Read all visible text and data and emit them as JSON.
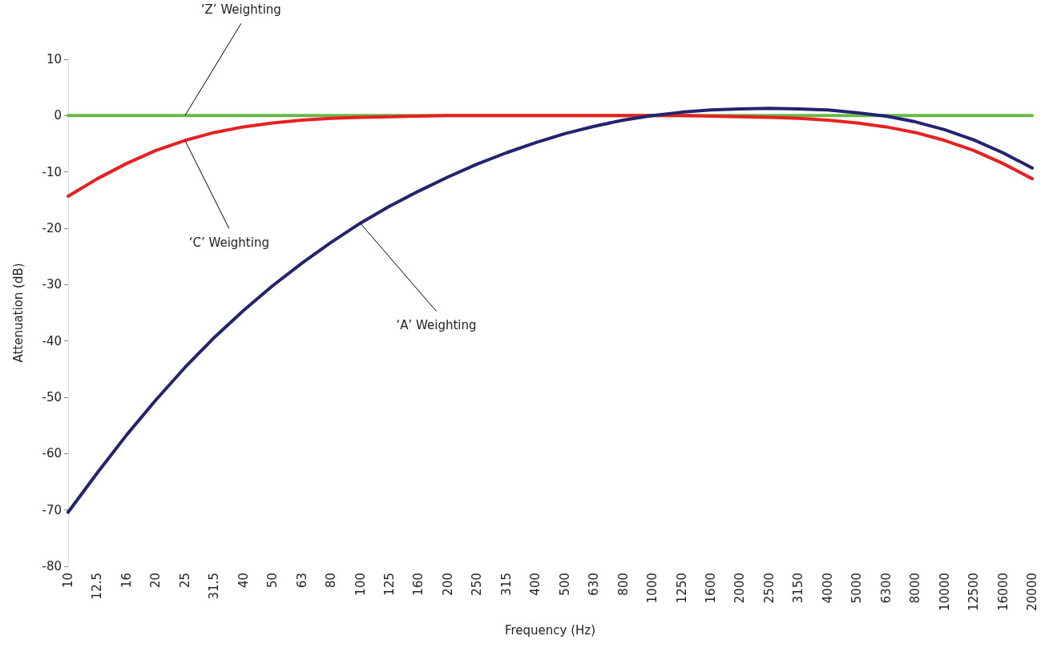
{
  "chart_data": {
    "type": "line",
    "xlabel": "Frequency (Hz)",
    "ylabel": "Attenuation (dB)",
    "categories": [
      "10",
      "12.5",
      "16",
      "20",
      "25",
      "31.5",
      "40",
      "50",
      "63",
      "80",
      "100",
      "125",
      "160",
      "200",
      "250",
      "315",
      "400",
      "500",
      "630",
      "800",
      "1000",
      "1250",
      "1600",
      "2000",
      "2500",
      "3150",
      "4000",
      "5000",
      "6300",
      "8000",
      "10000",
      "12500",
      "16000",
      "20000"
    ],
    "series": [
      {
        "color": "#6ab84a",
        "values": [
          0,
          0,
          0,
          0,
          0,
          0,
          0,
          0,
          0,
          0,
          0,
          0,
          0,
          0,
          0,
          0,
          0,
          0,
          0,
          0,
          0,
          0,
          0,
          0,
          0,
          0,
          0,
          0,
          0,
          0,
          0,
          0,
          0,
          0
        ]
      },
      {
        "color": "#e82020",
        "values": [
          -14.3,
          -11.2,
          -8.5,
          -6.2,
          -4.4,
          -3.0,
          -2.0,
          -1.3,
          -0.8,
          -0.5,
          -0.3,
          -0.2,
          -0.1,
          0,
          0,
          0,
          0,
          0,
          0,
          0,
          0,
          0,
          -0.1,
          -0.2,
          -0.3,
          -0.5,
          -0.8,
          -1.3,
          -2.0,
          -3.0,
          -4.4,
          -6.2,
          -8.5,
          -11.2
        ]
      },
      {
        "color": "#232370",
        "values": [
          -70.4,
          -63.4,
          -56.7,
          -50.5,
          -44.7,
          -39.4,
          -34.6,
          -30.2,
          -26.2,
          -22.5,
          -19.1,
          -16.1,
          -13.4,
          -10.9,
          -8.6,
          -6.6,
          -4.8,
          -3.2,
          -1.9,
          -0.8,
          0,
          0.6,
          1.0,
          1.2,
          1.3,
          1.2,
          1.0,
          0.5,
          -0.1,
          -1.1,
          -2.5,
          -4.3,
          -6.6,
          -9.3
        ]
      }
    ],
    "ylim": [
      -80,
      10
    ],
    "yticks": [
      -80,
      -70,
      -60,
      -50,
      -40,
      -30,
      -20,
      -10,
      0,
      10
    ],
    "grid": false,
    "marker": "none",
    "line_style": "solid",
    "annotations": [
      {
        "text": "‘Z’ Weighting",
        "x": "25",
        "y": 0
      },
      {
        "text": "‘C’ Weighting",
        "x": "25",
        "y": -4.4
      },
      {
        "text": "‘A’ Weighting",
        "x": "100",
        "y": -19.1
      }
    ]
  }
}
